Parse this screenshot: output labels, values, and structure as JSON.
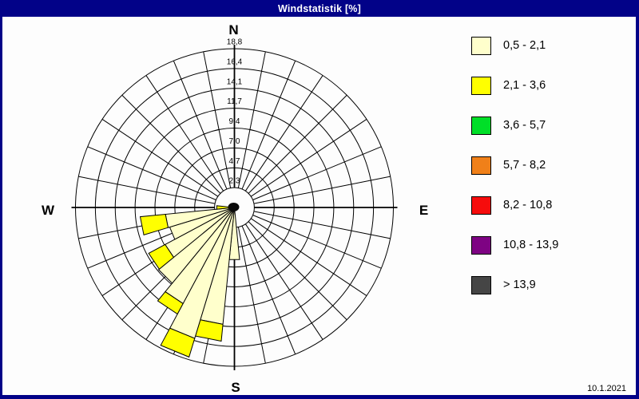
{
  "window": {
    "title": "Windstatistik [%]",
    "date": "10.1.2021",
    "frame_color": "#020288",
    "background_color": "#FDFDFD"
  },
  "compass": {
    "n": "N",
    "e": "E",
    "s": "S",
    "w": "W"
  },
  "chart_data": {
    "type": "wind-rose",
    "title": "Windstatistik [%]",
    "unit": "percent",
    "grid": {
      "sectors_total": 32,
      "sector_width_deg": 11.25,
      "rings": 8,
      "ring_step": 2.35,
      "rmax": 18.8,
      "grid_on": true
    },
    "ring_labels": [
      "2,3",
      "4,7",
      "7,0",
      "9,4",
      "11,7",
      "14,1",
      "16,4",
      "18,8"
    ],
    "ring_values": [
      2.3,
      4.7,
      7.0,
      9.4,
      11.7,
      14.1,
      16.4,
      18.8
    ],
    "series": [
      {
        "name": "0,5 - 2,1",
        "color": "#FFFFCC"
      },
      {
        "name": "2,1 - 3,6",
        "color": "#FFFF00"
      }
    ],
    "bars": [
      {
        "direction_deg": 180.0,
        "compass": "S",
        "values": [
          6.2,
          0
        ]
      },
      {
        "direction_deg": 191.25,
        "compass": "SbW",
        "values": [
          13.9,
          2.0
        ]
      },
      {
        "direction_deg": 202.5,
        "compass": "SSW",
        "values": [
          16.2,
          2.3
        ]
      },
      {
        "direction_deg": 213.75,
        "compass": "SWbS",
        "values": [
          12.9,
          1.4
        ]
      },
      {
        "direction_deg": 225.0,
        "compass": "SW",
        "values": [
          11.6,
          0
        ]
      },
      {
        "direction_deg": 236.25,
        "compass": "SWbW",
        "values": [
          9.3,
          2.2
        ]
      },
      {
        "direction_deg": 247.5,
        "compass": "WSW",
        "values": [
          8.0,
          0
        ]
      },
      {
        "direction_deg": 258.75,
        "compass": "WbS",
        "values": [
          8.2,
          3.0
        ]
      },
      {
        "direction_deg": 270.0,
        "compass": "W",
        "values": [
          0.7,
          1.4
        ]
      }
    ],
    "legend_position": "right"
  },
  "legend": {
    "items": [
      {
        "label": "0,5 - 2,1",
        "color": "#FFFFCC"
      },
      {
        "label": "2,1 - 3,6",
        "color": "#FFFF00"
      },
      {
        "label": "3,6 - 5,7",
        "color": "#00DF28"
      },
      {
        "label": "5,7 - 8,2",
        "color": "#F08019"
      },
      {
        "label": "8,2 - 10,8",
        "color": "#F60C0C"
      },
      {
        "label": "10,8 - 13,9",
        "color": "#7E0383"
      },
      {
        "label": "> 13,9",
        "color": "#454545"
      }
    ]
  }
}
